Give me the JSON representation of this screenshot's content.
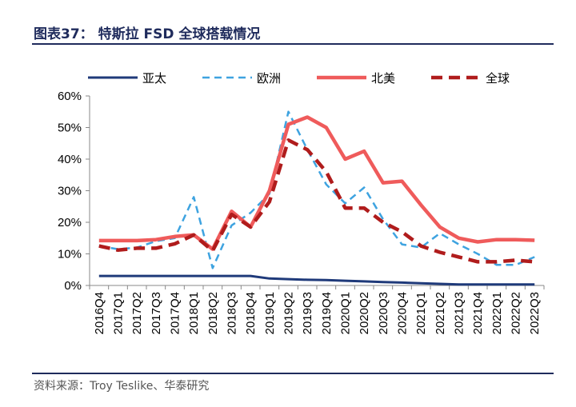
{
  "title": "图表37：  特斯拉 FSD 全球搭载情况",
  "source": "资料来源：Troy Teslike、华泰研究",
  "chart_data": {
    "type": "line",
    "title": "特斯拉 FSD 全球搭载情况",
    "xlabel": "",
    "ylabel": "",
    "ylim": [
      0,
      0.6
    ],
    "yticks": [
      "0%",
      "10%",
      "20%",
      "30%",
      "40%",
      "50%",
      "60%"
    ],
    "categories": [
      "2016Q4",
      "2017Q1",
      "2017Q2",
      "2017Q3",
      "2017Q4",
      "2018Q1",
      "2018Q2",
      "2018Q3",
      "2018Q4",
      "2019Q1",
      "2019Q2",
      "2019Q3",
      "2019Q4",
      "2020Q1",
      "2020Q2",
      "2020Q3",
      "2020Q4",
      "2021Q1",
      "2021Q2",
      "2021Q3",
      "2021Q4",
      "2022Q1",
      "2022Q2",
      "2022Q3"
    ],
    "legend_position": "top",
    "grid": false,
    "series": [
      {
        "name": "亚太",
        "color": "#1f3a7a",
        "style": "solid",
        "width": 3,
        "values": [
          0.03,
          0.03,
          0.03,
          0.03,
          0.03,
          0.03,
          0.03,
          0.03,
          0.03,
          0.022,
          0.02,
          0.018,
          0.017,
          0.015,
          0.013,
          0.011,
          0.009,
          0.007,
          0.005,
          0.003,
          0.003,
          0.003,
          0.003,
          0.003
        ]
      },
      {
        "name": "欧洲",
        "color": "#3ea3e0",
        "style": "dash",
        "width": 2.5,
        "values": [
          0.125,
          0.115,
          0.12,
          0.14,
          0.15,
          0.28,
          0.055,
          0.19,
          0.23,
          0.29,
          0.55,
          0.43,
          0.32,
          0.26,
          0.31,
          0.21,
          0.13,
          0.12,
          0.165,
          0.13,
          0.1,
          0.065,
          0.065,
          0.09
        ]
      },
      {
        "name": "北美",
        "color": "#ef5b5b",
        "style": "solid",
        "width": 4.5,
        "values": [
          0.142,
          0.142,
          0.142,
          0.145,
          0.155,
          0.16,
          0.115,
          0.235,
          0.185,
          0.3,
          0.51,
          0.533,
          0.5,
          0.4,
          0.425,
          0.325,
          0.33,
          0.255,
          0.185,
          0.15,
          0.138,
          0.145,
          0.145,
          0.143
        ]
      },
      {
        "name": "全球",
        "color": "#b01c1c",
        "style": "dash",
        "width": 4.5,
        "values": [
          0.125,
          0.112,
          0.118,
          0.118,
          0.132,
          0.16,
          0.11,
          0.225,
          0.185,
          0.265,
          0.46,
          0.43,
          0.36,
          0.245,
          0.245,
          0.2,
          0.17,
          0.125,
          0.105,
          0.09,
          0.075,
          0.075,
          0.08,
          0.075
        ]
      }
    ]
  }
}
